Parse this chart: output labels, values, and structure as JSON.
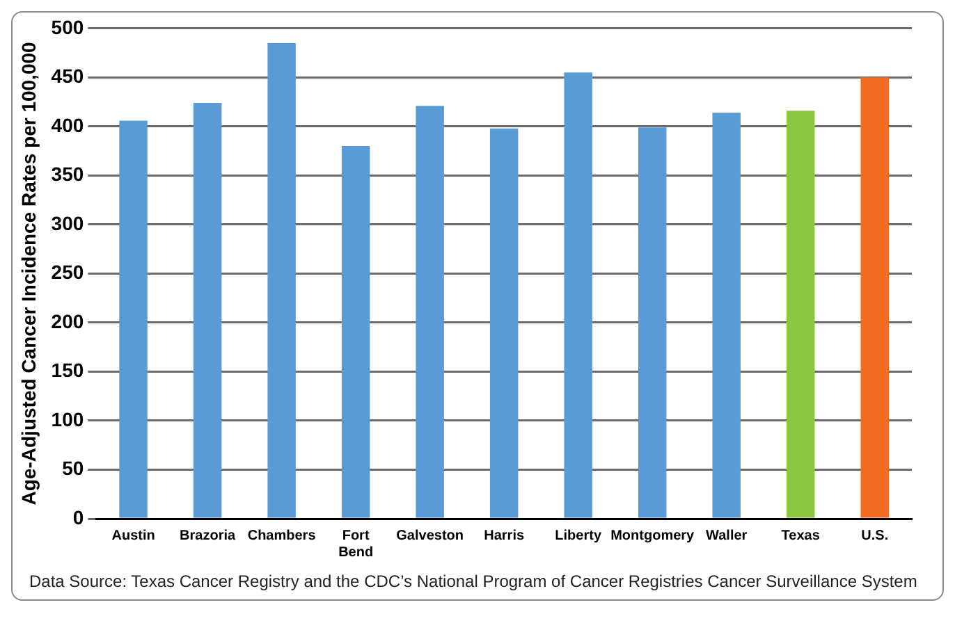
{
  "chart_data": {
    "type": "bar",
    "ylabel": "Age-Adjusted Cancer Incidence Rates per 100,000",
    "categories": [
      "Austin",
      "Brazoria",
      "Chambers",
      "Fort Bend",
      "Galveston",
      "Harris",
      "Liberty",
      "Montgomery",
      "Waller",
      "Texas",
      "U.S."
    ],
    "values": [
      406,
      424,
      485,
      380,
      421,
      398,
      455,
      399,
      414,
      416,
      450
    ],
    "colors": [
      "#5b9bd5",
      "#5b9bd5",
      "#5b9bd5",
      "#5b9bd5",
      "#5b9bd5",
      "#5b9bd5",
      "#5b9bd5",
      "#5b9bd5",
      "#5b9bd5",
      "#8dc63f",
      "#f26c22"
    ],
    "ylim": [
      0,
      500
    ],
    "yticks": [
      0,
      50,
      100,
      150,
      200,
      250,
      300,
      350,
      400,
      450,
      500
    ],
    "grid": "y",
    "legend": false,
    "annotations": [
      "Data Source: Texas Cancer Registry and the CDC’s National Program of Cancer Registries Cancer Surveillance System"
    ]
  }
}
